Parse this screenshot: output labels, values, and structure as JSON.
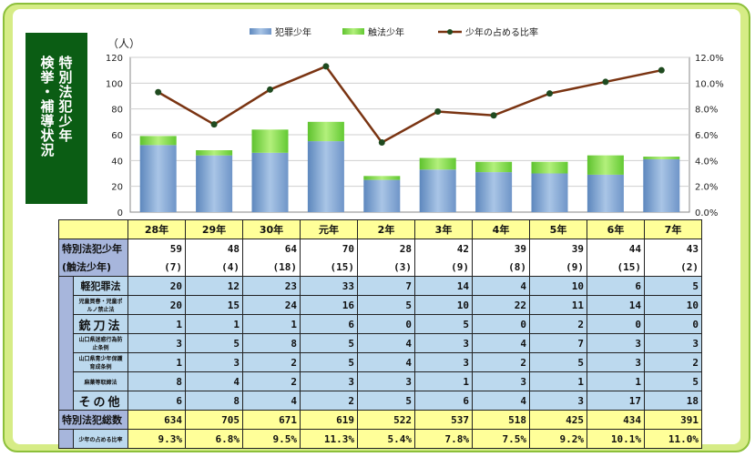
{
  "title": "特別法犯少年検挙・補導状況",
  "title_lines": [
    "特別法犯少年",
    "検挙・補導状況"
  ],
  "colors": {
    "frame": "#d6ec86",
    "title_bg": "#0b5d14",
    "bar_crime": "#7fa7d3",
    "bar_touch": "#7ed957",
    "line": "#7a3412",
    "header_bg": "#ffff99",
    "label_bg": "#a7b6dc",
    "cell_bg": "#bcd9ee"
  },
  "chart_data": {
    "type": "bar",
    "stacked": true,
    "categories": [
      "28年",
      "29年",
      "30年",
      "元年",
      "2年",
      "3年",
      "4年",
      "5年",
      "6年",
      "7年"
    ],
    "series": [
      {
        "name": "犯罪少年",
        "type": "bar",
        "values": [
          52,
          44,
          46,
          55,
          25,
          33,
          31,
          30,
          29,
          41
        ]
      },
      {
        "name": "触法少年",
        "type": "bar",
        "values": [
          7,
          4,
          18,
          15,
          3,
          9,
          8,
          9,
          15,
          2
        ]
      },
      {
        "name": "少年の占める比率",
        "type": "line",
        "axis": "right",
        "values": [
          9.3,
          6.8,
          9.5,
          11.3,
          5.4,
          7.8,
          7.5,
          9.2,
          10.1,
          11.0
        ]
      }
    ],
    "ylabel": "（人）",
    "ylim": [
      0,
      120
    ],
    "yticks": [
      "0",
      "20",
      "40",
      "60",
      "80",
      "100",
      "120"
    ],
    "y2lim": [
      0,
      12
    ],
    "y2ticks": [
      "0.0%",
      "2.0%",
      "4.0%",
      "6.0%",
      "8.0%",
      "10.0%",
      "12.0%"
    ],
    "legend": "top"
  },
  "table": {
    "headers": [
      "28年",
      "29年",
      "30年",
      "元年",
      "2年",
      "3年",
      "4年",
      "5年",
      "6年",
      "7年"
    ],
    "total_label": "特別法犯少年",
    "total_values": [
      "59",
      "48",
      "64",
      "70",
      "28",
      "42",
      "39",
      "39",
      "44",
      "43"
    ],
    "touch_label": "(触法少年)",
    "touch_values": [
      "(7)",
      "(4)",
      "(18)",
      "(15)",
      "(3)",
      "(9)",
      "(8)",
      "(9)",
      "(15)",
      "(2)"
    ],
    "rows": [
      {
        "label": "軽犯罪法",
        "size": "normal",
        "values": [
          "20",
          "12",
          "23",
          "33",
          "7",
          "14",
          "4",
          "10",
          "6",
          "5"
        ]
      },
      {
        "label": "児童買春・児童ポルノ禁止法",
        "size": "tiny",
        "values": [
          "20",
          "15",
          "24",
          "16",
          "5",
          "10",
          "22",
          "11",
          "14",
          "10"
        ]
      },
      {
        "label": "銃刀法",
        "size": "big",
        "values": [
          "1",
          "1",
          "1",
          "6",
          "0",
          "5",
          "0",
          "2",
          "0",
          "0"
        ]
      },
      {
        "label": "山口県迷惑行為防止条例",
        "size": "tiny",
        "values": [
          "3",
          "5",
          "8",
          "5",
          "4",
          "3",
          "4",
          "7",
          "3",
          "3"
        ]
      },
      {
        "label": "山口県青少年保護育成条例",
        "size": "tiny",
        "values": [
          "1",
          "3",
          "2",
          "5",
          "4",
          "3",
          "2",
          "5",
          "3",
          "2"
        ]
      },
      {
        "label": "麻薬等取締法",
        "size": "tiny",
        "values": [
          "8",
          "4",
          "2",
          "3",
          "3",
          "1",
          "3",
          "1",
          "1",
          "5"
        ]
      },
      {
        "label": "その他",
        "size": "big",
        "values": [
          "6",
          "8",
          "4",
          "2",
          "5",
          "6",
          "4",
          "3",
          "17",
          "18"
        ]
      }
    ],
    "overall_label": "特別法犯総数",
    "overall_values": [
      "634",
      "705",
      "671",
      "619",
      "522",
      "537",
      "518",
      "425",
      "434",
      "391"
    ],
    "ratio_label": "少年の占める比率",
    "ratio_values": [
      "9.3%",
      "6.8%",
      "9.5%",
      "11.3%",
      "5.4%",
      "7.8%",
      "7.5%",
      "9.2%",
      "10.1%",
      "11.0%"
    ]
  }
}
